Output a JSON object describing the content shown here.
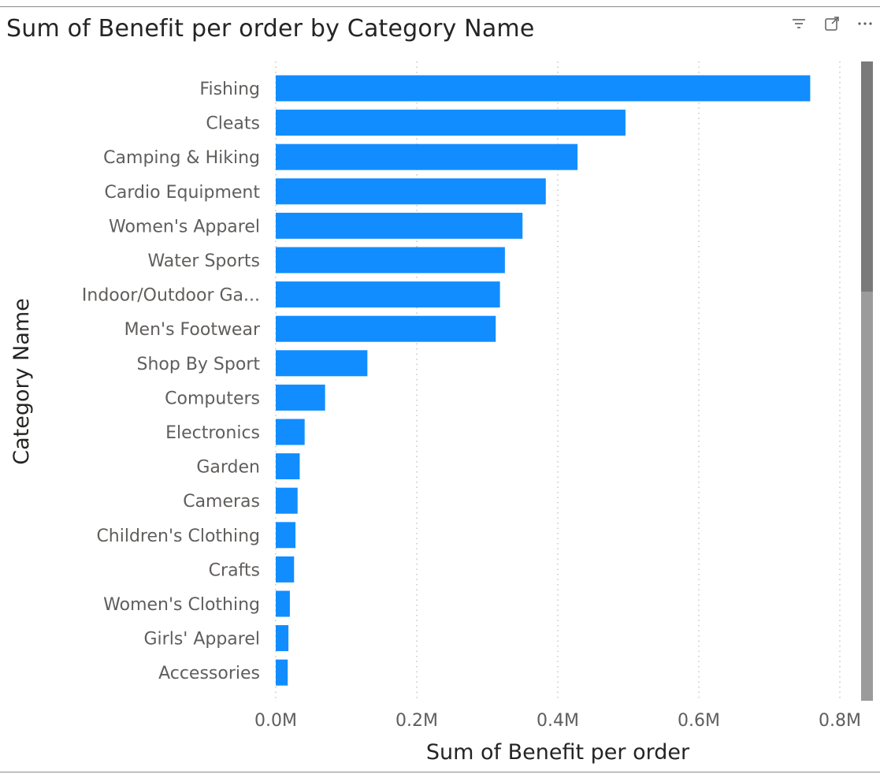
{
  "visual": {
    "title": "Sum of Benefit per order by Category Name",
    "icons": [
      "filter-icon",
      "focus-mode-icon",
      "more-options-icon"
    ]
  },
  "colors": {
    "bar": "#118DFF",
    "grid": "#c8c6c4",
    "scroll_thumb": "#7a7a7a",
    "scroll_track": "#9b9b9b"
  },
  "chart_data": {
    "type": "bar",
    "orientation": "horizontal",
    "title": "Sum of Benefit per order by Category Name",
    "xlabel": "Sum of Benefit per order",
    "ylabel": "Category Name",
    "xlim": [
      0,
      800000
    ],
    "x_ticks": [
      "0.0M",
      "0.2M",
      "0.4M",
      "0.6M",
      "0.8M"
    ],
    "grid": "vertical dotted",
    "categories": [
      "Fishing",
      "Cleats",
      "Camping & Hiking",
      "Cardio Equipment",
      "Women's Apparel",
      "Water Sports",
      "Indoor/Outdoor Ga...",
      "Men's Footwear",
      "Shop By Sport",
      "Computers",
      "Electronics",
      "Garden",
      "Cameras",
      "Children's Clothing",
      "Crafts",
      "Women's Clothing",
      "Girls' Apparel",
      "Accessories"
    ],
    "values": [
      758000,
      496000,
      428000,
      383000,
      350000,
      325000,
      318000,
      312000,
      130000,
      70000,
      41000,
      34000,
      31000,
      28000,
      26000,
      20000,
      18000,
      17000
    ]
  }
}
